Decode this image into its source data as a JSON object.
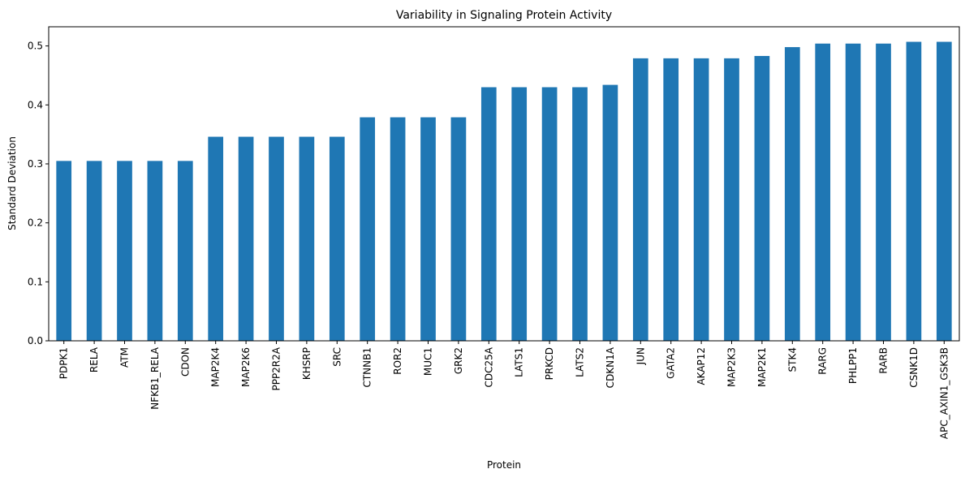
{
  "chart_data": {
    "type": "bar",
    "title": "Variability in Signaling Protein Activity",
    "xlabel": "Protein",
    "ylabel": "Standard Deviation",
    "ylim": [
      0,
      0.5325
    ],
    "yticks": [
      "0.0",
      "0.1",
      "0.2",
      "0.3",
      "0.4",
      "0.5"
    ],
    "grid": false,
    "legend": "none",
    "bar_color": "#1f77b4",
    "categories": [
      "PDPK1",
      "RELA",
      "ATM",
      "NFKB1_RELA",
      "CDON",
      "MAP2K4",
      "MAP2K6",
      "PPP2R2A",
      "KHSRP",
      "SRC",
      "CTNNB1",
      "ROR2",
      "MUC1",
      "GRK2",
      "CDC25A",
      "LATS1",
      "PRKCD",
      "LATS2",
      "CDKN1A",
      "JUN",
      "GATA2",
      "AKAP12",
      "MAP2K3",
      "MAP2K1",
      "STK4",
      "RARG",
      "PHLPP1",
      "RARB",
      "CSNK1D",
      "APC_AXIN1_GSK3B"
    ],
    "values": [
      0.305,
      0.305,
      0.305,
      0.305,
      0.305,
      0.346,
      0.346,
      0.346,
      0.346,
      0.346,
      0.379,
      0.379,
      0.379,
      0.379,
      0.43,
      0.43,
      0.43,
      0.43,
      0.434,
      0.479,
      0.479,
      0.479,
      0.479,
      0.483,
      0.498,
      0.504,
      0.504,
      0.504,
      0.507,
      0.507
    ]
  }
}
